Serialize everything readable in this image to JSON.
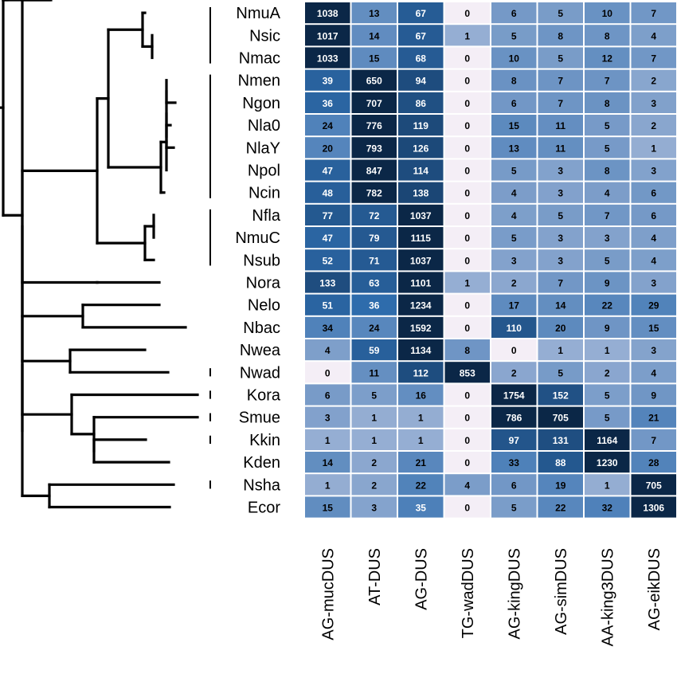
{
  "chart_data": {
    "type": "heatmap",
    "rows": [
      "NmuA",
      "Nsic",
      "Nmac",
      "Nmen",
      "Ngon",
      "Nla0",
      "NlaY",
      "Npol",
      "Ncin",
      "Nfla",
      "NmuC",
      "Nsub",
      "Nora",
      "Nelo",
      "Nbac",
      "Nwea",
      "Nwad",
      "Kora",
      "Smue",
      "Kkin",
      "Kden",
      "Nsha",
      "Ecor"
    ],
    "columns": [
      "AG-mucDUS",
      "AT-DUS",
      "AG-DUS",
      "TG-wadDUS",
      "AG-kingDUS",
      "AG-simDUS",
      "AA-king3DUS",
      "AG-eikDUS"
    ],
    "values": [
      [
        1038,
        13,
        67,
        0,
        6,
        5,
        10,
        7
      ],
      [
        1017,
        14,
        67,
        1,
        5,
        8,
        8,
        4
      ],
      [
        1033,
        15,
        68,
        0,
        10,
        5,
        12,
        7
      ],
      [
        39,
        650,
        94,
        0,
        8,
        7,
        7,
        2
      ],
      [
        36,
        707,
        86,
        0,
        6,
        7,
        8,
        3
      ],
      [
        24,
        776,
        119,
        0,
        15,
        11,
        5,
        2
      ],
      [
        20,
        793,
        126,
        0,
        13,
        11,
        5,
        1
      ],
      [
        47,
        847,
        114,
        0,
        5,
        3,
        8,
        3
      ],
      [
        48,
        782,
        138,
        0,
        4,
        3,
        4,
        6
      ],
      [
        77,
        72,
        1037,
        0,
        4,
        5,
        7,
        6
      ],
      [
        47,
        79,
        1115,
        0,
        5,
        3,
        3,
        4
      ],
      [
        52,
        71,
        1037,
        0,
        3,
        3,
        5,
        4
      ],
      [
        133,
        63,
        1101,
        1,
        2,
        7,
        9,
        3
      ],
      [
        51,
        36,
        1234,
        0,
        17,
        14,
        22,
        29
      ],
      [
        34,
        24,
        1592,
        0,
        110,
        20,
        9,
        15
      ],
      [
        4,
        59,
        1134,
        8,
        0,
        1,
        1,
        3
      ],
      [
        0,
        11,
        112,
        853,
        2,
        5,
        2,
        4
      ],
      [
        6,
        5,
        16,
        0,
        1754,
        152,
        5,
        9
      ],
      [
        3,
        1,
        1,
        0,
        786,
        705,
        5,
        21
      ],
      [
        1,
        1,
        1,
        0,
        97,
        131,
        1164,
        7
      ],
      [
        14,
        2,
        21,
        0,
        33,
        88,
        1230,
        28
      ],
      [
        1,
        2,
        22,
        4,
        6,
        19,
        1,
        705
      ],
      [
        15,
        3,
        35,
        0,
        5,
        22,
        32,
        1306
      ]
    ],
    "color_scale": {
      "low_zero": "#f4eef6",
      "low": "#a7b9d9",
      "mid": "#2f6dae",
      "high": "#0b2747"
    },
    "dendrogram": {
      "edges": [
        [
          0,
          1
        ],
        [
          0,
          2
        ],
        [
          1,
          3
        ],
        [
          1,
          4
        ],
        [
          2,
          5
        ],
        [
          2,
          6
        ],
        [
          3,
          7
        ],
        [
          3,
          8
        ],
        [
          5,
          9
        ],
        [
          5,
          10
        ],
        [
          9,
          11
        ],
        [
          9,
          12
        ],
        [
          11,
          13
        ],
        [
          11,
          14
        ],
        [
          13,
          15
        ],
        [
          13,
          16
        ],
        [
          15,
          17
        ],
        [
          15,
          18
        ],
        [
          17,
          19
        ],
        [
          17,
          20
        ],
        [
          19,
          21
        ],
        [
          19,
          22
        ],
        [
          21,
          "NmuA"
        ],
        [
          21,
          23
        ],
        [
          23,
          "Nsic"
        ],
        [
          23,
          "Nmac"
        ],
        [
          22,
          24
        ],
        [
          22,
          "Ncin"
        ],
        [
          24,
          25
        ],
        [
          24,
          "Npol"
        ],
        [
          25,
          26
        ],
        [
          25,
          27
        ],
        [
          26,
          "Nmen"
        ],
        [
          26,
          "Ngon"
        ],
        [
          27,
          "Nla0"
        ],
        [
          27,
          "NlaY"
        ],
        [
          20,
          28
        ],
        [
          20,
          "Nsub"
        ],
        [
          28,
          "Nfla"
        ],
        [
          28,
          "NmuC"
        ],
        [
          18,
          "Nora"
        ],
        [
          16,
          "Nelo"
        ],
        [
          16,
          "Nbac"
        ],
        [
          14,
          "Nwea"
        ],
        [
          14,
          "Nwad"
        ],
        [
          12,
          "Kora"
        ],
        [
          12,
          29
        ],
        [
          29,
          "Smue"
        ],
        [
          29,
          30
        ],
        [
          30,
          "Kkin"
        ],
        [
          30,
          "Kden"
        ],
        [
          10,
          "Nsha"
        ],
        [
          10,
          "Ecor"
        ]
      ],
      "depth": {
        "0": 0,
        "1": 1,
        "2": 2,
        "3": 3,
        "4": 4,
        "5": 5,
        "6": 6,
        "7": 7,
        "8": 8,
        "9": 9,
        "10": 10,
        "11": 11,
        "12": 12,
        "13": 13,
        "14": 14,
        "15": 15,
        "16": 16,
        "17": 17,
        "18": 18,
        "19": 19,
        "20": 20,
        "21": 21,
        "22": 22,
        "23": 23,
        "24": 24,
        "25": 25,
        "26": 26,
        "27": 27,
        "28": 28,
        "29": 29,
        "30": 30
      },
      "clade_groups": [
        [
          "NmuA",
          "Nmac"
        ],
        [
          "Nmen",
          "Ncin"
        ],
        [
          "Nfla",
          "Nsub"
        ],
        [
          "Nwad",
          "Nwad"
        ],
        [
          "Kora",
          "Kora"
        ],
        [
          "Smue",
          "Smue"
        ],
        [
          "Kkin",
          "Kkin"
        ],
        [
          "Nsha",
          "Nsha"
        ]
      ]
    }
  }
}
